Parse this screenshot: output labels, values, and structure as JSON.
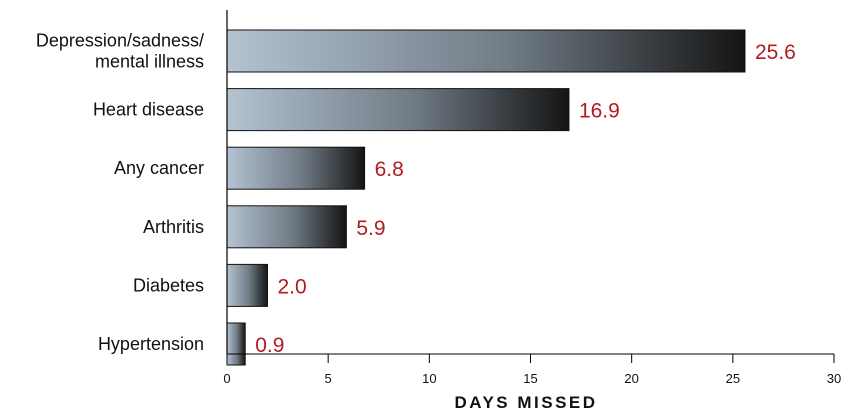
{
  "chart_data": {
    "type": "bar",
    "orientation": "horizontal",
    "categories": [
      [
        "Depression/sadness/",
        "mental illness"
      ],
      [
        "Heart disease"
      ],
      [
        "Any cancer"
      ],
      [
        "Arthritis"
      ],
      [
        "Diabetes"
      ],
      [
        "Hypertension"
      ]
    ],
    "values": [
      25.6,
      16.9,
      6.8,
      5.9,
      2.0,
      0.9
    ],
    "value_labels": [
      "25.6",
      "16.9",
      "6.8",
      "5.9",
      "2.0",
      "0.9"
    ],
    "xlabel": "DAYS MISSED",
    "xlim": [
      0,
      30
    ],
    "xticks": [
      0,
      5,
      10,
      15,
      20,
      25,
      30
    ],
    "grid": false,
    "colors": {
      "bar_gradient_start": "#b4c3d2",
      "bar_gradient_mid": "#6f7a84",
      "bar_gradient_end": "#141414",
      "value_label": "#b01c22",
      "axis": "#000000"
    }
  }
}
